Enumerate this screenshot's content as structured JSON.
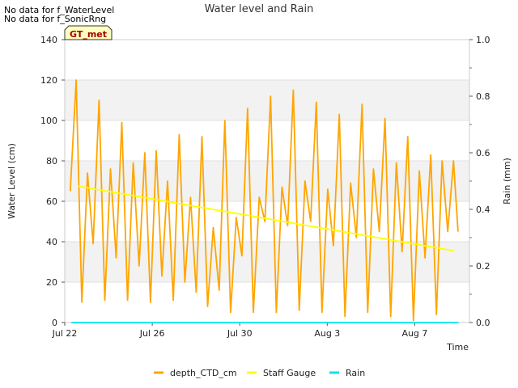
{
  "notes": [
    "No data for f_WaterLevel",
    "No data for f_SonicRng"
  ],
  "chart_data": {
    "type": "line",
    "title": "Water level and Rain",
    "xlabel": "Time",
    "ylabel": "Water Level (cm)",
    "y2label": "Rain (mm)",
    "badge": "GT_met",
    "x_range": [
      0,
      18.5
    ],
    "x_ticks": [
      {
        "x": 0,
        "label": "Jul 22"
      },
      {
        "x": 4,
        "label": "Jul 26"
      },
      {
        "x": 8,
        "label": "Jul 30"
      },
      {
        "x": 12,
        "label": "Aug 3"
      },
      {
        "x": 16,
        "label": "Aug 7"
      }
    ],
    "ylim": [
      0,
      140
    ],
    "y_ticks": [
      0,
      20,
      40,
      60,
      80,
      100,
      120,
      140
    ],
    "y2lim": [
      0,
      1.0
    ],
    "y2_ticks": [
      "0.0",
      "0.2",
      "0.4",
      "0.6",
      "0.8",
      "1.0"
    ],
    "grid_bands": [
      [
        20,
        40
      ],
      [
        60,
        80
      ],
      [
        100,
        120
      ]
    ],
    "series": [
      {
        "name": "depth_CTD_cm",
        "color": "#FFA500",
        "axis": "left",
        "x": [
          0.25,
          0.52,
          0.78,
          1.04,
          1.3,
          1.57,
          1.83,
          2.09,
          2.35,
          2.61,
          2.87,
          3.13,
          3.4,
          3.66,
          3.92,
          4.18,
          4.44,
          4.7,
          4.96,
          5.23,
          5.49,
          5.75,
          6.01,
          6.27,
          6.53,
          6.79,
          7.06,
          7.32,
          7.58,
          7.84,
          8.1,
          8.36,
          8.62,
          8.89,
          9.15,
          9.41,
          9.67,
          9.93,
          10.19,
          10.45,
          10.72,
          10.98,
          11.24,
          11.5,
          11.76,
          12.02,
          12.28,
          12.55,
          12.81,
          13.07,
          13.33,
          13.59,
          13.85,
          14.11,
          14.38,
          14.64,
          14.9,
          15.16,
          15.42,
          15.68,
          15.94,
          16.21,
          16.47,
          16.73,
          16.99,
          17.25,
          17.51,
          17.77,
          17.98
        ],
        "y": [
          65,
          120,
          10,
          74,
          39,
          110,
          11,
          76,
          32,
          99,
          11,
          79,
          28,
          84,
          10,
          85,
          23,
          70,
          11,
          93,
          20,
          62,
          15,
          92,
          8,
          47,
          16,
          100,
          5,
          52,
          33,
          106,
          5,
          62,
          50,
          112,
          5,
          67,
          48,
          115,
          6,
          70,
          50,
          109,
          5,
          66,
          38,
          103,
          3,
          69,
          42,
          108,
          5,
          76,
          45,
          101,
          3,
          79,
          35,
          92,
          1,
          75,
          32,
          83,
          4,
          80,
          45,
          80,
          45
        ]
      },
      {
        "name": "Staff Gauge",
        "color": "#FFFF00",
        "axis": "left",
        "x": [
          0.6,
          17.8
        ],
        "y": [
          67.5,
          35.5
        ]
      },
      {
        "name": "Rain",
        "color": "#00E5EE",
        "axis": "right",
        "x": [
          0.3,
          18.0
        ],
        "y": [
          0,
          0
        ]
      }
    ],
    "legend_position": "bottom"
  }
}
